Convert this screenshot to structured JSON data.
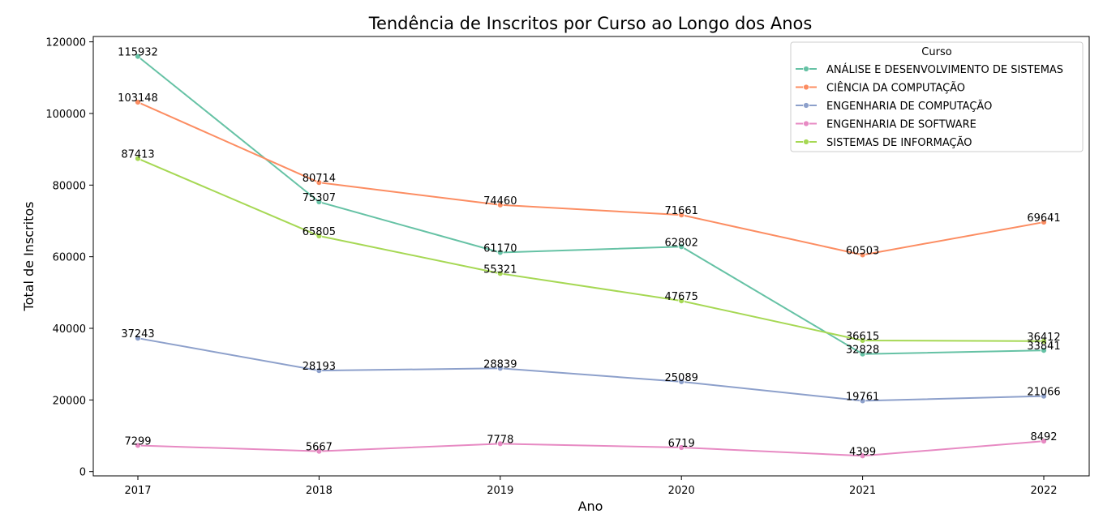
{
  "chart_data": {
    "type": "line",
    "title": "Tendência de Inscritos por Curso ao Longo dos Anos",
    "xlabel": "Ano",
    "ylabel": "Total de Inscritos",
    "x": [
      "2017",
      "2018",
      "2019",
      "2020",
      "2021",
      "2022"
    ],
    "ylim": [
      -1200,
      121500
    ],
    "yticks": [
      0,
      20000,
      40000,
      60000,
      80000,
      100000,
      120000
    ],
    "grid": false,
    "legend": {
      "title": "Curso",
      "placement": "top-right"
    },
    "series": [
      {
        "name": "ANÁLISE E DESENVOLVIMENTO DE SISTEMAS",
        "color": "#66c2a5",
        "values": [
          115932,
          75307,
          61170,
          62802,
          32828,
          33841
        ]
      },
      {
        "name": "CIÊNCIA DA COMPUTAÇÃO",
        "color": "#fc8d62",
        "values": [
          103148,
          80714,
          74460,
          71661,
          60503,
          69641
        ]
      },
      {
        "name": "ENGENHARIA DE COMPUTAÇÃO",
        "color": "#8da0cb",
        "values": [
          37243,
          28193,
          28839,
          25089,
          19761,
          21066
        ]
      },
      {
        "name": "ENGENHARIA DE SOFTWARE",
        "color": "#e78ac3",
        "values": [
          7299,
          5667,
          7778,
          6719,
          4399,
          8492
        ]
      },
      {
        "name": "SISTEMAS DE INFORMAÇÃO",
        "color": "#a6d854",
        "values": [
          87413,
          65805,
          55321,
          47675,
          36615,
          36412
        ]
      }
    ]
  }
}
